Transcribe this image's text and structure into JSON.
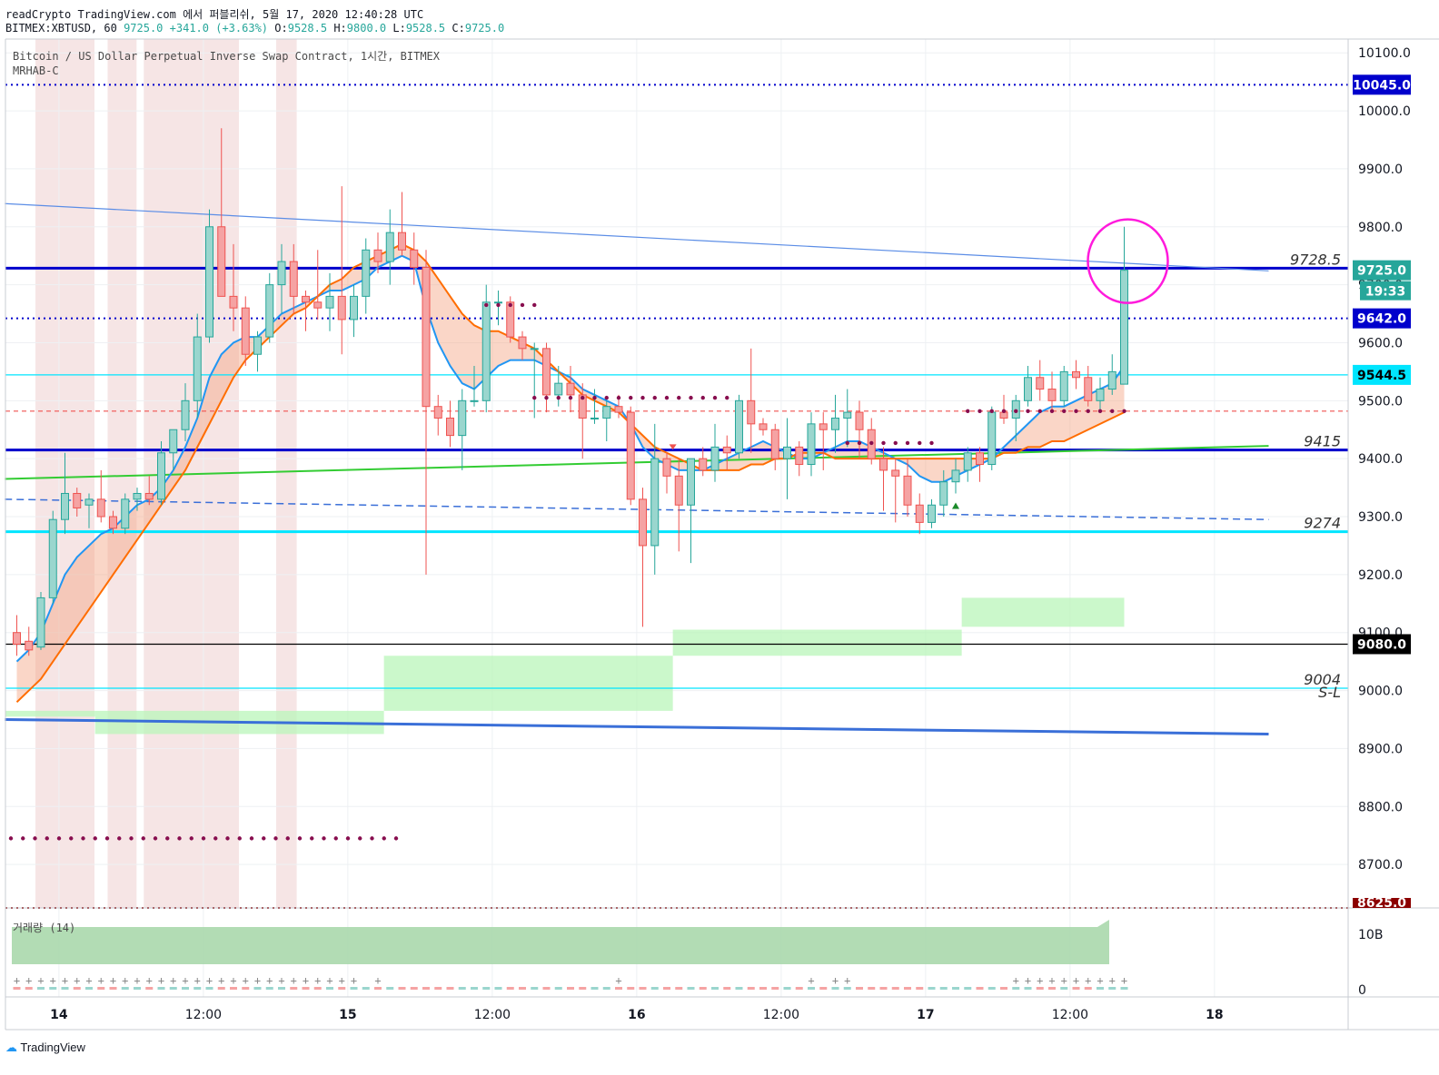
{
  "header": {
    "line1": "readCrypto TradingView.com 에서 퍼블리쉬, 5월 17, 2020 12:40:28 UTC",
    "symbol": "BITMEX:XBTUSD, 60",
    "last": "9725.0",
    "change": "+341.0 (+3.63%)",
    "o_label": "O:",
    "o": "9528.5",
    "h_label": "H:",
    "h": "9800.0",
    "l_label": "L:",
    "l": "9528.5",
    "c_label": "C:",
    "c": "9725.0"
  },
  "legend": {
    "title": "Bitcoin / US Dollar Perpetual Inverse Swap Contract, 1시간, BITMEX",
    "indicator": "MRHAB-C",
    "volume": "거래량 (14)"
  },
  "branding": {
    "logo_text": "TradingView"
  },
  "colors": {
    "up": "#26a69a",
    "down": "#ef5350",
    "blue_ma": "#2196f3",
    "orange_ma": "#ff6d00",
    "cyan": "#00e5ff",
    "navy": "#0000cc",
    "green_line": "#33cc33",
    "dot": "#880e4f"
  },
  "chart_data": {
    "type": "candlestick",
    "symbol": "BITMEX:XBTUSD",
    "interval": "1시간",
    "ylim": [
      8625,
      10120
    ],
    "y_ticks": [
      8700,
      8800,
      8900,
      9000,
      9100,
      9200,
      9300,
      9400,
      9500,
      9600,
      9700,
      9800,
      9900,
      10000,
      10100
    ],
    "x_ticks": [
      {
        "label": "14",
        "bold": true,
        "index": 3.5
      },
      {
        "label": "12:00",
        "bold": false,
        "index": 15.5
      },
      {
        "label": "15",
        "bold": true,
        "index": 27.5
      },
      {
        "label": "12:00",
        "bold": false,
        "index": 39.5
      },
      {
        "label": "16",
        "bold": true,
        "index": 51.5
      },
      {
        "label": "12:00",
        "bold": false,
        "index": 63.5
      },
      {
        "label": "17",
        "bold": true,
        "index": 75.5
      },
      {
        "label": "12:00",
        "bold": false,
        "index": 87.5
      },
      {
        "label": "18",
        "bold": true,
        "index": 99.5
      }
    ],
    "price_tags": [
      {
        "value": 10045,
        "label": "10045.0",
        "bg": "#0000cc",
        "fg": "#ffffff"
      },
      {
        "value": 9725,
        "label": "9725.0",
        "bg": "#26a69a",
        "fg": "#ffffff"
      },
      {
        "value": 9642,
        "label": "9642.0",
        "bg": "#0000cc",
        "fg": "#ffffff"
      },
      {
        "value": 9544.5,
        "label": "9544.5",
        "bg": "#00e5ff",
        "fg": "#000000"
      },
      {
        "value": 9080,
        "label": "9080.0",
        "bg": "#000000",
        "fg": "#ffffff"
      },
      {
        "value": 8625,
        "label": "8625.0",
        "bg": "#8b0000",
        "fg": "#ffffff"
      }
    ],
    "countdown": "19:33",
    "level_annotations": [
      {
        "value": 9728.5,
        "label": "9728.5"
      },
      {
        "value": 9415,
        "label": "9415"
      },
      {
        "value": 9274,
        "label": "9274"
      },
      {
        "value": 9004,
        "label": "9004"
      },
      {
        "value": 9004,
        "label": "S-L",
        "below": true
      }
    ],
    "volume_axis": [
      "10B",
      "0"
    ],
    "candles": [
      [
        9100,
        9130,
        9060,
        9080
      ],
      [
        9085,
        9110,
        9060,
        9070
      ],
      [
        9075,
        9170,
        9070,
        9160
      ],
      [
        9160,
        9310,
        9150,
        9295
      ],
      [
        9295,
        9410,
        9270,
        9340
      ],
      [
        9340,
        9350,
        9300,
        9315
      ],
      [
        9320,
        9340,
        9280,
        9330
      ],
      [
        9330,
        9380,
        9290,
        9300
      ],
      [
        9300,
        9310,
        9270,
        9280
      ],
      [
        9280,
        9340,
        9270,
        9330
      ],
      [
        9330,
        9350,
        9310,
        9340
      ],
      [
        9340,
        9370,
        9320,
        9330
      ],
      [
        9330,
        9430,
        9320,
        9410
      ],
      [
        9410,
        9450,
        9380,
        9450
      ],
      [
        9450,
        9530,
        9430,
        9500
      ],
      [
        9500,
        9650,
        9470,
        9610
      ],
      [
        9610,
        9830,
        9600,
        9800
      ],
      [
        9800,
        9970,
        9680,
        9680
      ],
      [
        9680,
        9770,
        9620,
        9660
      ],
      [
        9660,
        9680,
        9560,
        9580
      ],
      [
        9580,
        9620,
        9550,
        9610
      ],
      [
        9610,
        9720,
        9600,
        9700
      ],
      [
        9700,
        9770,
        9650,
        9740
      ],
      [
        9740,
        9770,
        9650,
        9680
      ],
      [
        9680,
        9690,
        9620,
        9670
      ],
      [
        9670,
        9760,
        9640,
        9660
      ],
      [
        9660,
        9720,
        9620,
        9680
      ],
      [
        9680,
        9870,
        9580,
        9640
      ],
      [
        9640,
        9700,
        9610,
        9680
      ],
      [
        9680,
        9780,
        9650,
        9760
      ],
      [
        9760,
        9790,
        9720,
        9740
      ],
      [
        9740,
        9830,
        9700,
        9790
      ],
      [
        9790,
        9860,
        9750,
        9760
      ],
      [
        9760,
        9790,
        9700,
        9730
      ],
      [
        9730,
        9760,
        9200,
        9490
      ],
      [
        9490,
        9510,
        9440,
        9470
      ],
      [
        9470,
        9500,
        9420,
        9440
      ],
      [
        9440,
        9520,
        9380,
        9500
      ],
      [
        9500,
        9560,
        9490,
        9500
      ],
      [
        9500,
        9700,
        9480,
        9670
      ],
      [
        9670,
        9690,
        9630,
        9670
      ],
      [
        9670,
        9680,
        9600,
        9610
      ],
      [
        9610,
        9620,
        9570,
        9590
      ],
      [
        9590,
        9600,
        9470,
        9590
      ],
      [
        9590,
        9600,
        9480,
        9510
      ],
      [
        9510,
        9560,
        9490,
        9530
      ],
      [
        9530,
        9560,
        9480,
        9510
      ],
      [
        9510,
        9530,
        9400,
        9470
      ],
      [
        9470,
        9520,
        9460,
        9470
      ],
      [
        9470,
        9500,
        9430,
        9490
      ],
      [
        9490,
        9510,
        9470,
        9480
      ],
      [
        9480,
        9490,
        9320,
        9330
      ],
      [
        9330,
        9350,
        9110,
        9250
      ],
      [
        9250,
        9460,
        9200,
        9400
      ],
      [
        9400,
        9410,
        9340,
        9370
      ],
      [
        9370,
        9400,
        9240,
        9320
      ],
      [
        9320,
        9400,
        9220,
        9400
      ],
      [
        9400,
        9420,
        9370,
        9380
      ],
      [
        9380,
        9460,
        9360,
        9420
      ],
      [
        9420,
        9440,
        9380,
        9410
      ],
      [
        9410,
        9510,
        9400,
        9500
      ],
      [
        9500,
        9590,
        9410,
        9460
      ],
      [
        9460,
        9470,
        9440,
        9450
      ],
      [
        9450,
        9460,
        9380,
        9400
      ],
      [
        9400,
        9470,
        9330,
        9420
      ],
      [
        9420,
        9430,
        9370,
        9390
      ],
      [
        9390,
        9480,
        9370,
        9460
      ],
      [
        9460,
        9480,
        9380,
        9450
      ],
      [
        9450,
        9510,
        9410,
        9470
      ],
      [
        9470,
        9520,
        9420,
        9480
      ],
      [
        9480,
        9500,
        9400,
        9450
      ],
      [
        9450,
        9470,
        9390,
        9400
      ],
      [
        9400,
        9420,
        9310,
        9380
      ],
      [
        9380,
        9400,
        9290,
        9370
      ],
      [
        9370,
        9400,
        9300,
        9320
      ],
      [
        9320,
        9340,
        9270,
        9290
      ],
      [
        9290,
        9330,
        9280,
        9320
      ],
      [
        9320,
        9380,
        9300,
        9360
      ],
      [
        9360,
        9400,
        9340,
        9380
      ],
      [
        9380,
        9420,
        9360,
        9410
      ],
      [
        9410,
        9420,
        9360,
        9390
      ],
      [
        9390,
        9490,
        9380,
        9480
      ],
      [
        9480,
        9510,
        9460,
        9470
      ],
      [
        9470,
        9510,
        9430,
        9500
      ],
      [
        9500,
        9560,
        9490,
        9540
      ],
      [
        9540,
        9570,
        9500,
        9520
      ],
      [
        9520,
        9550,
        9480,
        9500
      ],
      [
        9500,
        9560,
        9490,
        9550
      ],
      [
        9550,
        9570,
        9520,
        9540
      ],
      [
        9540,
        9560,
        9490,
        9500
      ],
      [
        9500,
        9540,
        9480,
        9520
      ],
      [
        9520,
        9580,
        9510,
        9550
      ],
      [
        9528.5,
        9800,
        9528.5,
        9725
      ]
    ],
    "moving_averages": [
      {
        "name": "blue",
        "values": [
          9050,
          9070,
          9100,
          9150,
          9200,
          9230,
          9250,
          9270,
          9280,
          9300,
          9320,
          9330,
          9350,
          9380,
          9420,
          9470,
          9540,
          9580,
          9600,
          9610,
          9610,
          9630,
          9650,
          9660,
          9670,
          9680,
          9690,
          9690,
          9700,
          9710,
          9730,
          9740,
          9750,
          9740,
          9660,
          9600,
          9560,
          9530,
          9520,
          9540,
          9560,
          9570,
          9570,
          9570,
          9560,
          9550,
          9540,
          9520,
          9510,
          9500,
          9490,
          9460,
          9420,
          9400,
          9390,
          9380,
          9380,
          9380,
          9390,
          9400,
          9410,
          9420,
          9430,
          9420,
          9410,
          9400,
          9400,
          9410,
          9420,
          9430,
          9430,
          9420,
          9410,
          9400,
          9390,
          9370,
          9360,
          9360,
          9370,
          9380,
          9390,
          9400,
          9420,
          9440,
          9460,
          9480,
          9490,
          9490,
          9500,
          9510,
          9520,
          9530,
          9560
        ]
      },
      {
        "name": "orange",
        "values": [
          8980,
          9000,
          9020,
          9050,
          9080,
          9110,
          9140,
          9170,
          9200,
          9230,
          9260,
          9290,
          9320,
          9350,
          9380,
          9420,
          9460,
          9500,
          9540,
          9570,
          9590,
          9610,
          9630,
          9650,
          9660,
          9680,
          9700,
          9710,
          9730,
          9740,
          9750,
          9760,
          9770,
          9760,
          9740,
          9710,
          9680,
          9650,
          9630,
          9620,
          9620,
          9610,
          9600,
          9590,
          9570,
          9550,
          9530,
          9510,
          9500,
          9490,
          9480,
          9460,
          9440,
          9420,
          9410,
          9400,
          9390,
          9380,
          9380,
          9380,
          9380,
          9390,
          9390,
          9400,
          9400,
          9410,
          9410,
          9410,
          9400,
          9400,
          9400,
          9400,
          9400,
          9400,
          9400,
          9400,
          9400,
          9400,
          9400,
          9400,
          9400,
          9400,
          9410,
          9410,
          9420,
          9420,
          9430,
          9430,
          9440,
          9450,
          9460,
          9470,
          9480
        ]
      }
    ],
    "lines": [
      {
        "name": "blue-trend",
        "from": [
          -1,
          9840
        ],
        "to": [
          104,
          9724
        ]
      },
      {
        "name": "blue-lower-trend",
        "from": [
          -1,
          8950
        ],
        "to": [
          104,
          8925
        ]
      },
      {
        "name": "dashed-trend",
        "from": [
          -1,
          9330
        ],
        "to": [
          104,
          9295
        ]
      },
      {
        "name": "green-trend",
        "from": [
          -1,
          9365
        ],
        "to": [
          104,
          9422
        ]
      }
    ],
    "horizontal_levels": [
      {
        "value": 10045,
        "style": "dotted",
        "color": "#0000cc"
      },
      {
        "value": 9728.5,
        "style": "solid-thick",
        "color": "#0000cc"
      },
      {
        "value": 9642,
        "style": "dotted",
        "color": "#0000cc"
      },
      {
        "value": 9544.5,
        "style": "solid",
        "color": "#00e5ff"
      },
      {
        "value": 9482,
        "style": "dashed",
        "color": "#ef5350"
      },
      {
        "value": 9415,
        "style": "solid-thick",
        "color": "#0000cc"
      },
      {
        "value": 9274,
        "style": "solid-thick",
        "color": "#00e5ff"
      },
      {
        "value": 9080,
        "style": "solid",
        "color": "#000000"
      },
      {
        "value": 9004,
        "style": "solid",
        "color": "#00e5ff"
      },
      {
        "value": 8625,
        "style": "dotted",
        "color": "#8b0000"
      }
    ],
    "support_steps": [
      {
        "from": -1,
        "to": 6.5,
        "top": 8965,
        "bottom": 8955
      },
      {
        "from": 6.5,
        "to": 30.5,
        "top": 8965,
        "bottom": 8925
      },
      {
        "from": 30.5,
        "to": 54.5,
        "top": 9060,
        "bottom": 8965
      },
      {
        "from": 54.5,
        "to": 78.5,
        "top": 9105,
        "bottom": 9060
      },
      {
        "from": 78.5,
        "to": 92,
        "top": 9160,
        "bottom": 9110
      }
    ],
    "shaded_bands": [
      [
        2,
        6
      ],
      [
        8,
        9.5
      ],
      [
        11,
        18
      ],
      [
        22,
        22.8
      ]
    ],
    "dot_rows": [
      {
        "from": -1,
        "to": 32,
        "value": 8745
      },
      {
        "from": 39,
        "to": 43,
        "value": 9665
      },
      {
        "from": 43,
        "to": 59,
        "value": 9505
      },
      {
        "from": 69,
        "to": 76,
        "value": 9427
      },
      {
        "from": 79,
        "to": 92,
        "value": 9482
      }
    ],
    "markers": [
      {
        "type": "down-triangle",
        "index": 54.5,
        "value": 9420,
        "color": "#ef5350"
      },
      {
        "type": "up-triangle",
        "index": 78,
        "value": 9318,
        "color": "#1b8a2a"
      }
    ],
    "highlight_circle": {
      "index": 92,
      "value": 9725
    },
    "volume_plus_marks": [
      0,
      1,
      2,
      3,
      4,
      5,
      6,
      7,
      8,
      9,
      10,
      11,
      12,
      13,
      14,
      15,
      16,
      17,
      18,
      19,
      20,
      21,
      22,
      23,
      24,
      25,
      26,
      27,
      28,
      30,
      50,
      66,
      68,
      69,
      83,
      84,
      85,
      86,
      87,
      88,
      89,
      90,
      91,
      92
    ]
  }
}
